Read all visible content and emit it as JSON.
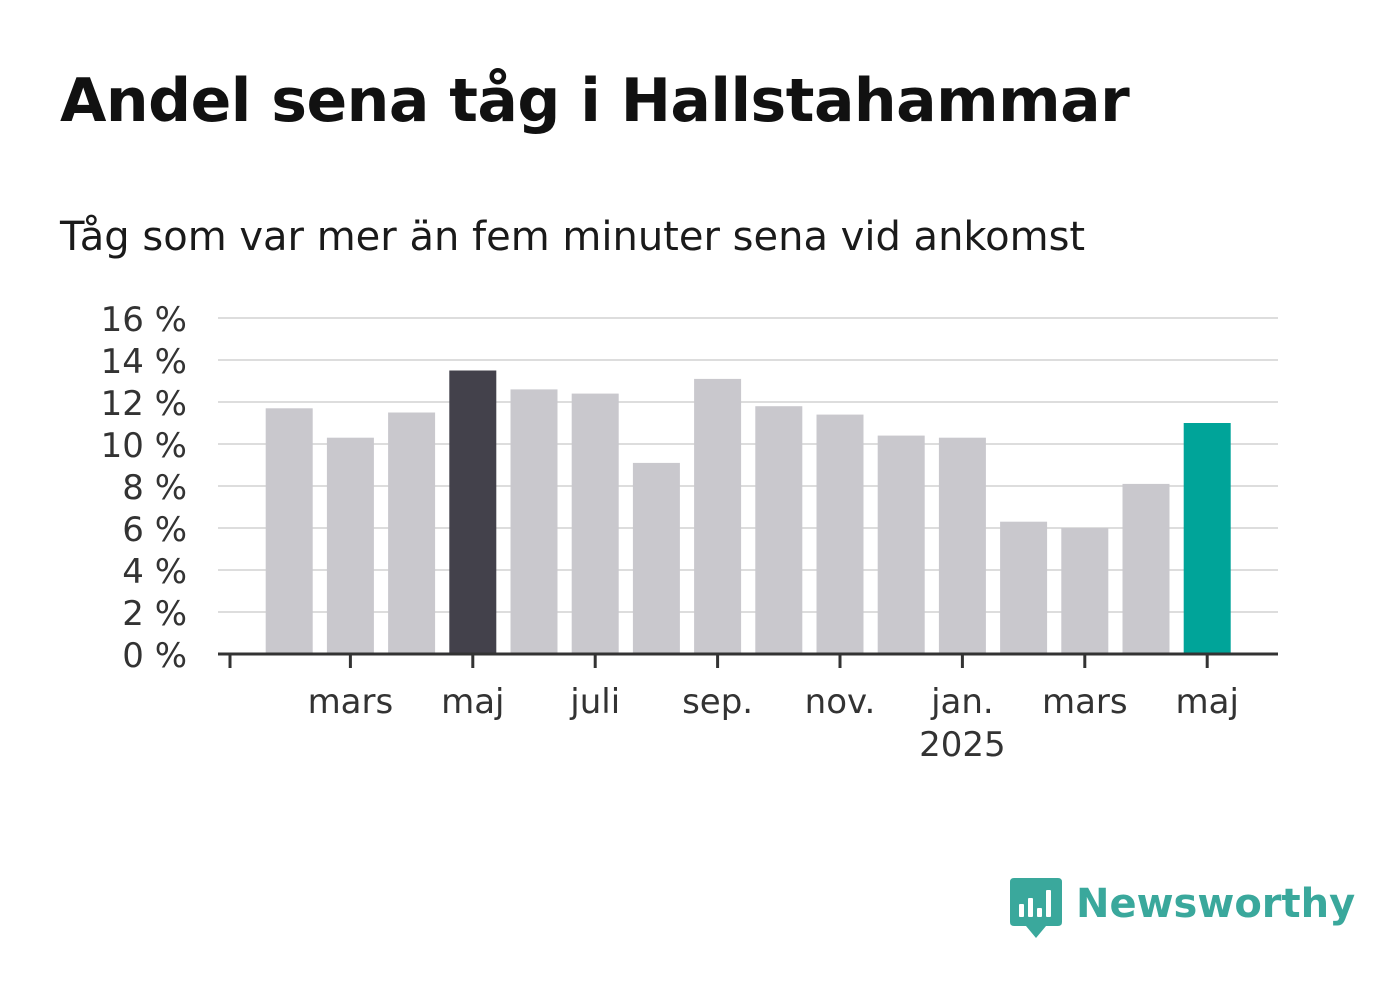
{
  "title": "Andel sena tåg i Hallstahammar",
  "subtitle": "Tåg som var mer än fem minuter sena vid ankomst",
  "brand": {
    "name": "Newsworthy",
    "color": "#3aa89c"
  },
  "colors": {
    "default_bar": "#c9c8cd",
    "highlight_bar": "#43414b",
    "latest_bar": "#00a499",
    "grid": "#dddddd",
    "axis": "#333333"
  },
  "chart_data": {
    "type": "bar",
    "ylim": [
      0,
      16
    ],
    "yticks": [
      0,
      2,
      4,
      6,
      8,
      10,
      12,
      14,
      16
    ],
    "ytick_labels": [
      "0 %",
      "2 %",
      "4 %",
      "6 %",
      "8 %",
      "10 %",
      "12 %",
      "14 %",
      "16 %"
    ],
    "grid": true,
    "xlabel": "",
    "ylabel": "",
    "categories": [
      "2024-02",
      "2024-03",
      "2024-04",
      "2024-05",
      "2024-06",
      "2024-07",
      "2024-08",
      "2024-09",
      "2024-10",
      "2024-11",
      "2024-12",
      "2025-01",
      "2025-02",
      "2025-03",
      "2025-04",
      "2025-05"
    ],
    "values": [
      11.7,
      10.3,
      11.5,
      13.5,
      12.6,
      12.4,
      9.1,
      13.1,
      11.8,
      11.4,
      10.4,
      10.3,
      6.3,
      6.0,
      8.1,
      11.0
    ],
    "highlight": {
      "2024-05": "highlight_bar",
      "2025-05": "latest_bar"
    },
    "xtick_labels": [
      {
        "category": "2024-03",
        "label": "mars"
      },
      {
        "category": "2024-05",
        "label": "maj"
      },
      {
        "category": "2024-07",
        "label": "juli"
      },
      {
        "category": "2024-09",
        "label": "sep."
      },
      {
        "category": "2024-11",
        "label": "nov."
      },
      {
        "category": "2025-01",
        "label": "jan.",
        "sublabel": "2025"
      },
      {
        "category": "2025-03",
        "label": "mars"
      },
      {
        "category": "2025-05",
        "label": "maj"
      }
    ]
  }
}
